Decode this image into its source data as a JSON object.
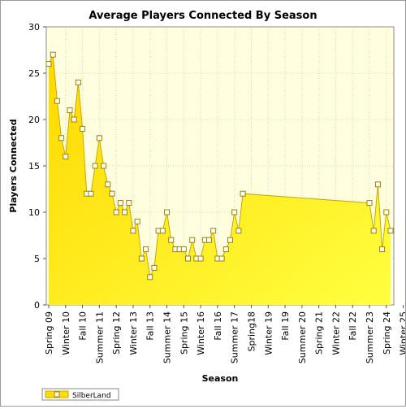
{
  "chart_data": {
    "type": "area",
    "title": "Average Players Connected By Season",
    "xlabel": "Season",
    "ylabel": "Players Connected",
    "ylim": [
      0,
      30
    ],
    "yticks": [
      0,
      5,
      10,
      15,
      20,
      25,
      30
    ],
    "grid": true,
    "legend_position": "bottom-left",
    "x_tick_labels": [
      "Spring 09",
      "Winter 10",
      "Fall 10",
      "Summer 11",
      "Spring 12",
      "Winter 13",
      "Fall 13",
      "Summer 14",
      "Spring 15",
      "Winter 16",
      "Fall 16",
      "Summer 17",
      "Spring18",
      "Winter 19",
      "Fall 19",
      "Summer 20",
      "Spring 21",
      "Winter 22",
      "Fall 22",
      "Summer 23",
      "Spring 24",
      "Winter 25"
    ],
    "colors": {
      "area_top": "#ffdd00",
      "area_bottom": "#ffff33",
      "plot_bg": "#ffffe0",
      "marker": "#ffffff"
    },
    "series": [
      {
        "name": "SilberLand",
        "values": [
          26,
          27,
          22,
          18,
          16,
          21,
          20,
          24,
          19,
          12,
          12,
          15,
          18,
          15,
          13,
          12,
          10,
          11,
          10,
          11,
          8,
          9,
          5,
          6,
          3,
          4,
          8,
          8,
          10,
          7,
          6,
          6,
          6,
          5,
          7,
          5,
          5,
          7,
          7,
          8,
          5,
          5,
          6,
          7,
          10,
          8,
          12,
          null,
          null,
          null,
          null,
          null,
          null,
          null,
          null,
          null,
          null,
          null,
          null,
          null,
          null,
          null,
          null,
          null,
          null,
          null,
          null,
          null,
          null,
          null,
          null,
          null,
          null,
          null,
          null,
          null,
          11,
          8,
          13,
          6,
          10,
          8
        ]
      }
    ]
  }
}
